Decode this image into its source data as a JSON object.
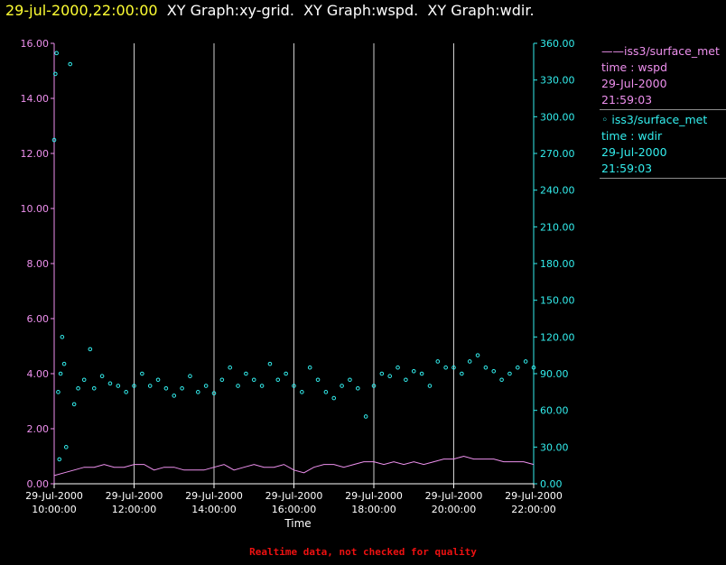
{
  "header": {
    "date": "29-jul-2000,22:00:00",
    "rest": "  XY Graph:xy-grid.  XY Graph:wspd.  XY Graph:wdir."
  },
  "legend": [
    {
      "line1": "——iss3/surface_met",
      "line2": "time : wspd",
      "line3": "29-Jul-2000",
      "line4": "21:59:03"
    },
    {
      "line1": "◦  iss3/surface_met",
      "line2": "time : wdir",
      "line3": "29-Jul-2000",
      "line4": "21:59:03"
    }
  ],
  "footer": "Realtime data, not checked for quality",
  "colors": {
    "background": "#000000",
    "wspd": "#ee90ee",
    "wdir": "#33eeee",
    "grid": "#d0d0d0",
    "header_date": "#ffff33",
    "footer": "#ee1111"
  },
  "chart_data": {
    "type": "line+scatter",
    "xlabel": "Time",
    "xlim_hours": [
      10,
      22
    ],
    "x_tick_hours": [
      10,
      12,
      14,
      16,
      18,
      20,
      22
    ],
    "x_tick_labels": [
      [
        "29-Jul-2000",
        "10:00:00"
      ],
      [
        "29-Jul-2000",
        "12:00:00"
      ],
      [
        "29-Jul-2000",
        "14:00:00"
      ],
      [
        "29-Jul-2000",
        "16:00:00"
      ],
      [
        "29-Jul-2000",
        "18:00:00"
      ],
      [
        "29-Jul-2000",
        "20:00:00"
      ],
      [
        "29-Jul-2000",
        "22:00:00"
      ]
    ],
    "grid_x": true,
    "left_axis": {
      "label": "wspd",
      "ylim": [
        0,
        16
      ],
      "tick_labels": [
        "0.00",
        "2.00",
        "4.00",
        "6.00",
        "8.00",
        "10.00",
        "12.00",
        "14.00",
        "16.00"
      ]
    },
    "right_axis": {
      "label": "wdir",
      "ylim": [
        0,
        360
      ],
      "tick_labels": [
        "0.00",
        "30.00",
        "60.00",
        "90.00",
        "120.00",
        "150.00",
        "180.00",
        "210.00",
        "240.00",
        "270.00",
        "300.00",
        "330.00",
        "360.00"
      ]
    },
    "series": [
      {
        "name": "iss3/surface_met time : wspd",
        "style": "line",
        "axis": "left",
        "hours": [
          10.0,
          10.25,
          10.5,
          10.75,
          11.0,
          11.25,
          11.5,
          11.75,
          12.0,
          12.25,
          12.5,
          12.75,
          13.0,
          13.25,
          13.5,
          13.75,
          14.0,
          14.25,
          14.5,
          14.75,
          15.0,
          15.25,
          15.5,
          15.75,
          16.0,
          16.25,
          16.5,
          16.75,
          17.0,
          17.25,
          17.5,
          17.75,
          18.0,
          18.25,
          18.5,
          18.75,
          19.0,
          19.25,
          19.5,
          19.75,
          20.0,
          20.25,
          20.5,
          20.75,
          21.0,
          21.25,
          21.5,
          21.75,
          22.0
        ],
        "values": [
          0.3,
          0.4,
          0.5,
          0.6,
          0.6,
          0.7,
          0.6,
          0.6,
          0.7,
          0.7,
          0.5,
          0.6,
          0.6,
          0.5,
          0.5,
          0.5,
          0.6,
          0.7,
          0.5,
          0.6,
          0.7,
          0.6,
          0.6,
          0.7,
          0.5,
          0.4,
          0.6,
          0.7,
          0.7,
          0.6,
          0.7,
          0.8,
          0.8,
          0.7,
          0.8,
          0.7,
          0.8,
          0.7,
          0.8,
          0.9,
          0.9,
          1.0,
          0.9,
          0.9,
          0.9,
          0.8,
          0.8,
          0.8,
          0.7
        ]
      },
      {
        "name": "iss3/surface_met time : wdir",
        "style": "scatter",
        "axis": "right",
        "hours": [
          10.0,
          10.03,
          10.06,
          10.1,
          10.13,
          10.16,
          10.2,
          10.25,
          10.3,
          10.4,
          10.5,
          10.6,
          10.75,
          10.9,
          11.0,
          11.2,
          11.4,
          11.6,
          11.8,
          12.0,
          12.2,
          12.4,
          12.6,
          12.8,
          13.0,
          13.2,
          13.4,
          13.6,
          13.8,
          14.0,
          14.2,
          14.4,
          14.6,
          14.8,
          15.0,
          15.2,
          15.4,
          15.6,
          15.8,
          16.0,
          16.2,
          16.4,
          16.6,
          16.8,
          17.0,
          17.2,
          17.4,
          17.6,
          17.8,
          18.0,
          18.2,
          18.4,
          18.6,
          18.8,
          19.0,
          19.2,
          19.4,
          19.6,
          19.8,
          20.0,
          20.2,
          20.4,
          20.6,
          20.8,
          21.0,
          21.2,
          21.4,
          21.6,
          21.8,
          22.0
        ],
        "values": [
          281,
          335,
          352,
          75,
          20,
          90,
          120,
          98,
          30,
          343,
          65,
          78,
          85,
          110,
          78,
          88,
          82,
          80,
          75,
          80,
          90,
          80,
          85,
          78,
          72,
          78,
          88,
          75,
          80,
          74,
          85,
          95,
          80,
          90,
          85,
          80,
          98,
          85,
          90,
          80,
          75,
          95,
          85,
          75,
          70,
          80,
          85,
          78,
          55,
          80,
          90,
          88,
          95,
          85,
          92,
          90,
          80,
          100,
          95,
          95,
          90,
          100,
          105,
          95,
          92,
          85,
          90,
          95,
          100,
          95
        ]
      }
    ]
  }
}
